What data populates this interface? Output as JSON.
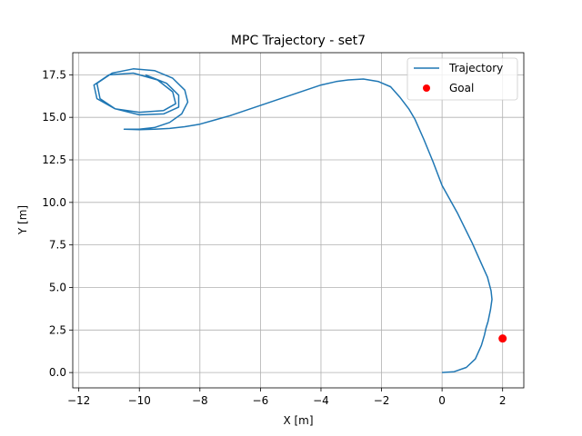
{
  "chart_data": {
    "type": "line",
    "title": "MPC Trajectory - set7",
    "xlabel": "X [m]",
    "ylabel": "Y [m]",
    "xlim": [
      -12.2,
      2.7
    ],
    "ylim": [
      -0.9,
      18.8
    ],
    "xticks": [
      -12,
      -10,
      -8,
      -6,
      -4,
      -2,
      0,
      2
    ],
    "yticks": [
      0.0,
      2.5,
      5.0,
      7.5,
      10.0,
      12.5,
      15.0,
      17.5
    ],
    "xtick_labels": [
      "−12",
      "−10",
      "−8",
      "−6",
      "−4",
      "−2",
      "0",
      "2"
    ],
    "ytick_labels": [
      "0.0",
      "2.5",
      "5.0",
      "7.5",
      "10.0",
      "12.5",
      "15.0",
      "17.5"
    ],
    "grid": true,
    "legend_position": "upper right",
    "series": [
      {
        "name": "Trajectory",
        "kind": "line",
        "color": "#1f77b4",
        "x": [
          0.0,
          0.4,
          0.8,
          1.1,
          1.3,
          1.4,
          1.45,
          1.52,
          1.6,
          1.65,
          1.62,
          1.5,
          1.3,
          1.0,
          0.5,
          0.0,
          -0.3,
          -0.6,
          -0.9,
          -1.1,
          -1.4,
          -1.7,
          -2.1,
          -2.6,
          -3.1,
          -3.5,
          -4.0,
          -4.5,
          -5.0,
          -5.5,
          -6.0,
          -6.5,
          -7.0,
          -7.5,
          -8.0,
          -8.5,
          -9.0,
          -9.5,
          -10.0,
          -10.5,
          -10.0,
          -9.5,
          -9.0,
          -8.6,
          -8.4,
          -8.5,
          -8.9,
          -9.5,
          -10.2,
          -10.9,
          -11.4,
          -11.3,
          -10.8,
          -10.0,
          -9.2,
          -8.8,
          -8.9,
          -9.4,
          -10.2,
          -11.0,
          -11.5,
          -11.4,
          -10.8,
          -10.0,
          -9.2,
          -8.7,
          -8.7,
          -9.1,
          -9.8
        ],
        "y": [
          0.0,
          0.05,
          0.3,
          0.8,
          1.6,
          2.2,
          2.6,
          3.0,
          3.7,
          4.3,
          4.8,
          5.6,
          6.4,
          7.6,
          9.4,
          11.0,
          12.4,
          13.7,
          14.9,
          15.5,
          16.2,
          16.8,
          17.1,
          17.25,
          17.2,
          17.1,
          16.9,
          16.6,
          16.3,
          16.0,
          15.7,
          15.4,
          15.1,
          14.85,
          14.6,
          14.45,
          14.35,
          14.3,
          14.28,
          14.3,
          14.3,
          14.4,
          14.7,
          15.2,
          15.9,
          16.6,
          17.3,
          17.75,
          17.85,
          17.6,
          17.0,
          16.1,
          15.5,
          15.3,
          15.4,
          15.8,
          16.5,
          17.2,
          17.6,
          17.5,
          16.9,
          16.1,
          15.5,
          15.15,
          15.2,
          15.6,
          16.3,
          17.0,
          17.5
        ]
      },
      {
        "name": "Goal",
        "kind": "marker",
        "color": "#ff0000",
        "x": [
          2.0
        ],
        "y": [
          2.0
        ]
      }
    ]
  }
}
